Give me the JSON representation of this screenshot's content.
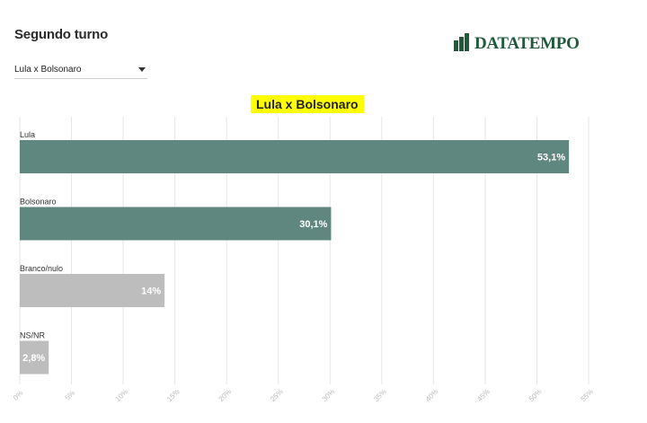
{
  "header": {
    "title": "Segundo turno"
  },
  "logo": {
    "text": "DATATEMPO",
    "brand_color": "#1f5b3a"
  },
  "selector": {
    "value": "Lula x Bolsonaro",
    "icon": "chevron-down-icon"
  },
  "chart_data": {
    "type": "bar",
    "orientation": "horizontal",
    "title": "Lula x Bolsonaro",
    "categories": [
      "Lula",
      "Bolsonaro",
      "Branco/nulo",
      "NS/NR"
    ],
    "values": [
      53.1,
      30.1,
      14,
      2.8
    ],
    "data_labels": [
      "53,1%",
      "30,1%",
      "14%",
      "2,8%"
    ],
    "colors": [
      "#5f877f",
      "#5f877f",
      "#bdbdbd",
      "#bdbdbd"
    ],
    "xlim": [
      0,
      55
    ],
    "x_ticks": [
      0,
      5,
      10,
      15,
      20,
      25,
      30,
      35,
      40,
      45,
      50,
      55
    ],
    "x_tick_labels": [
      "0%",
      "5%",
      "10%",
      "15%",
      "20%",
      "25%",
      "30%",
      "35%",
      "40%",
      "45%",
      "50%",
      "55%"
    ],
    "grid": true,
    "xlabel": "",
    "ylabel": ""
  }
}
